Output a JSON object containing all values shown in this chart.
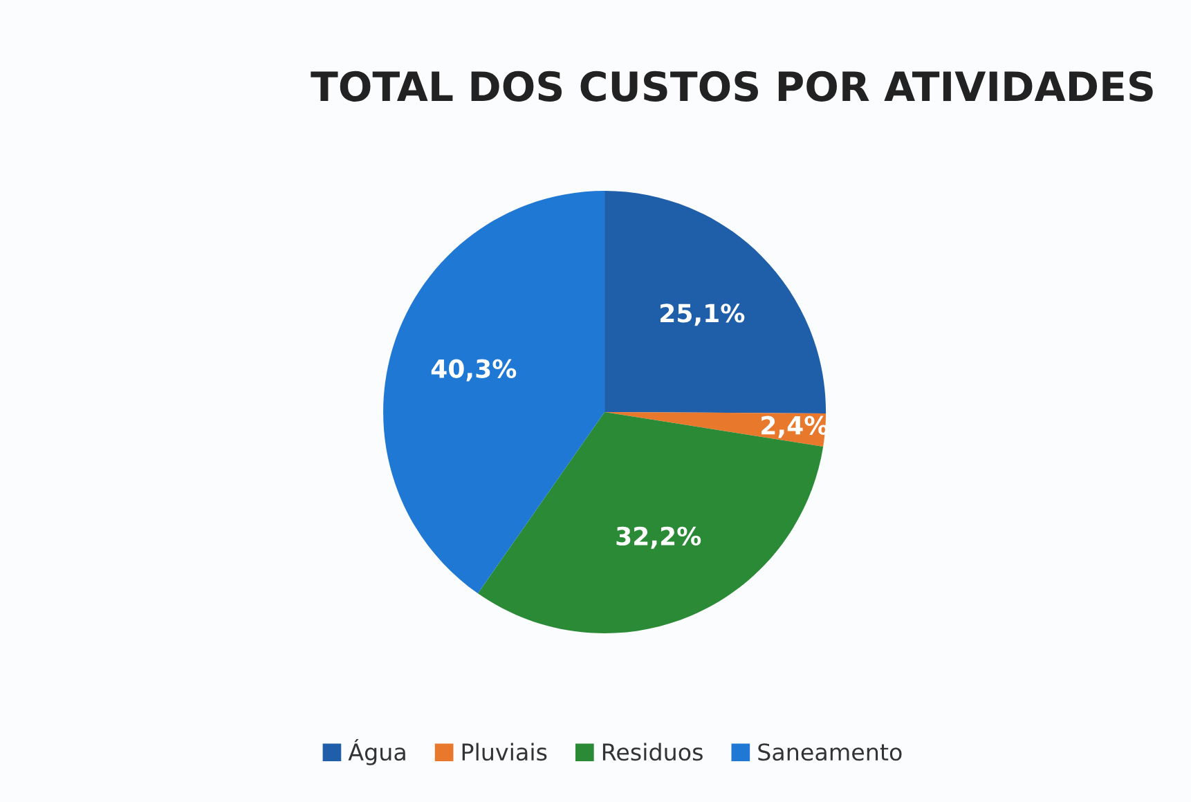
{
  "chart_data": {
    "type": "pie",
    "title": "TOTAL DOS CUSTOS POR ATIVIDADES",
    "categories": [
      "Água",
      "Pluviais",
      "Residuos",
      "Saneamento"
    ],
    "values": [
      25.1,
      2.4,
      32.2,
      40.3
    ],
    "value_labels": [
      "25,1%",
      "2,4%",
      "32,2%",
      "40,3%"
    ],
    "colors": [
      "#1f5ea8",
      "#e8782c",
      "#2a8a35",
      "#1f78d4"
    ],
    "legend": "bottom"
  }
}
